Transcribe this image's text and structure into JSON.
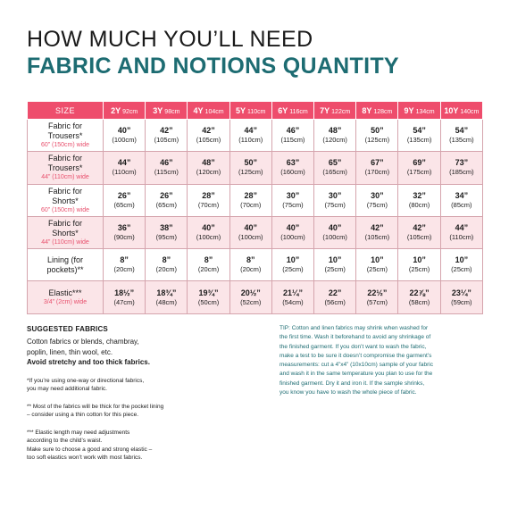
{
  "title_line1": "HOW MUCH YOU’LL NEED",
  "title_line2": "FABRIC AND NOTIONS QUANTITY",
  "table": {
    "size_header": "SIZE",
    "sizes": [
      {
        "label": "2Y",
        "cm": "92cm"
      },
      {
        "label": "3Y",
        "cm": "98cm"
      },
      {
        "label": "4Y",
        "cm": "104cm"
      },
      {
        "label": "5Y",
        "cm": "110cm"
      },
      {
        "label": "6Y",
        "cm": "116cm"
      },
      {
        "label": "7Y",
        "cm": "122cm"
      },
      {
        "label": "8Y",
        "cm": "128cm"
      },
      {
        "label": "9Y",
        "cm": "134cm"
      },
      {
        "label": "10Y",
        "cm": "140cm"
      }
    ],
    "rows": [
      {
        "label_lines": [
          "Fabric for",
          "Trousers*"
        ],
        "sub": "60” (150cm) wide",
        "cells": [
          {
            "v": "40”",
            "s": "(100cm)"
          },
          {
            "v": "42”",
            "s": "(105cm)"
          },
          {
            "v": "42”",
            "s": "(105cm)"
          },
          {
            "v": "44”",
            "s": "(110cm)"
          },
          {
            "v": "46”",
            "s": "(115cm)"
          },
          {
            "v": "48”",
            "s": "(120cm)"
          },
          {
            "v": "50”",
            "s": "(125cm)"
          },
          {
            "v": "54”",
            "s": "(135cm)"
          },
          {
            "v": "54”",
            "s": "(135cm)"
          }
        ]
      },
      {
        "label_lines": [
          "Fabric for",
          "Trousers*"
        ],
        "sub": "44” (110cm) wide",
        "cells": [
          {
            "v": "44”",
            "s": "(110cm)"
          },
          {
            "v": "46”",
            "s": "(115cm)"
          },
          {
            "v": "48”",
            "s": "(120cm)"
          },
          {
            "v": "50”",
            "s": "(125cm)"
          },
          {
            "v": "63”",
            "s": "(160cm)"
          },
          {
            "v": "65”",
            "s": "(165cm)"
          },
          {
            "v": "67”",
            "s": "(170cm)"
          },
          {
            "v": "69”",
            "s": "(175cm)"
          },
          {
            "v": "73”",
            "s": "(185cm)"
          }
        ]
      },
      {
        "label_lines": [
          "Fabric for",
          "Shorts*"
        ],
        "sub": "60” (150cm) wide",
        "cells": [
          {
            "v": "26”",
            "s": "(65cm)"
          },
          {
            "v": "26”",
            "s": "(65cm)"
          },
          {
            "v": "28”",
            "s": "(70cm)"
          },
          {
            "v": "28”",
            "s": "(70cm)"
          },
          {
            "v": "30”",
            "s": "(75cm)"
          },
          {
            "v": "30”",
            "s": "(75cm)"
          },
          {
            "v": "30”",
            "s": "(75cm)"
          },
          {
            "v": "32”",
            "s": "(80cm)"
          },
          {
            "v": "34”",
            "s": "(85cm)"
          }
        ]
      },
      {
        "label_lines": [
          "Fabric for",
          "Shorts*"
        ],
        "sub": "44” (110cm) wide",
        "cells": [
          {
            "v": "36”",
            "s": "(90cm)"
          },
          {
            "v": "38”",
            "s": "(95cm)"
          },
          {
            "v": "40”",
            "s": "(100cm)"
          },
          {
            "v": "40”",
            "s": "(100cm)"
          },
          {
            "v": "40”",
            "s": "(100cm)"
          },
          {
            "v": "40”",
            "s": "(100cm)"
          },
          {
            "v": "42”",
            "s": "(105cm)"
          },
          {
            "v": "42”",
            "s": "(105cm)"
          },
          {
            "v": "44”",
            "s": "(110cm)"
          }
        ]
      },
      {
        "label_lines": [
          "Lining (for",
          "pockets)**"
        ],
        "sub": "",
        "cells": [
          {
            "v": "8”",
            "s": "(20cm)"
          },
          {
            "v": "8”",
            "s": "(20cm)"
          },
          {
            "v": "8”",
            "s": "(20cm)"
          },
          {
            "v": "8”",
            "s": "(20cm)"
          },
          {
            "v": "10”",
            "s": "(25cm)"
          },
          {
            "v": "10”",
            "s": "(25cm)"
          },
          {
            "v": "10”",
            "s": "(25cm)"
          },
          {
            "v": "10”",
            "s": "(25cm)"
          },
          {
            "v": "10”",
            "s": "(25cm)"
          }
        ]
      },
      {
        "label_lines": [
          "Elastic***"
        ],
        "sub": "3/4” (2cm) wide",
        "cells": [
          {
            "v": "18½”",
            "s": "(47cm)"
          },
          {
            "v": "18¾”",
            "s": "(48cm)"
          },
          {
            "v": "19¾”",
            "s": "(50cm)"
          },
          {
            "v": "20½”",
            "s": "(52cm)"
          },
          {
            "v": "21¼”",
            "s": "(54cm)"
          },
          {
            "v": "22”",
            "s": "(56cm)"
          },
          {
            "v": "22½”",
            "s": "(57cm)"
          },
          {
            "v": "22⅞”",
            "s": "(58cm)"
          },
          {
            "v": "23¼”",
            "s": "(59cm)"
          }
        ]
      }
    ]
  },
  "suggested": {
    "title": "SUGGESTED FABRICS",
    "lines": [
      "Cotton fabrics or blends, chambray,",
      "poplin, linen, thin wool, etc."
    ],
    "bold": "Avoid stretchy and too thick fabrics."
  },
  "notes": [
    [
      "*If you’re using one-way or directional fabrics,",
      "you may need additional fabric."
    ],
    [
      "** Most of the fabrics will be thick for the pocket lining",
      "– consider using a thin cotton for this piece."
    ],
    [
      "*** Elastic length may need adjustments",
      "according to the child’s waist.",
      "Make sure to choose a good and strong elastic –",
      "too soft elastics won’t work with most fabrics."
    ]
  ],
  "tip_lines": [
    "TIP: Cotton and linen fabrics may shrink when washed for",
    "the first time. Wash it beforehand to avoid any shrinkage of",
    "the finished garment. If you don’t want to wash the fabric,",
    "make a test to be sure it doesn’t compromise the garment’s",
    "measurements: cut a 4”x4” (10x10cm) sample of your fabric",
    "and wash it in the same temperature you plan to use for the",
    "finished garment. Dry it and iron it. If the sample shrinks,",
    "you know you have to wash the whole piece of fabric."
  ],
  "colors": {
    "header_pink": "#ee4d6c",
    "alt_row": "#fbe5e8",
    "teal": "#1d6c72",
    "sub_pink": "#e8506d"
  }
}
